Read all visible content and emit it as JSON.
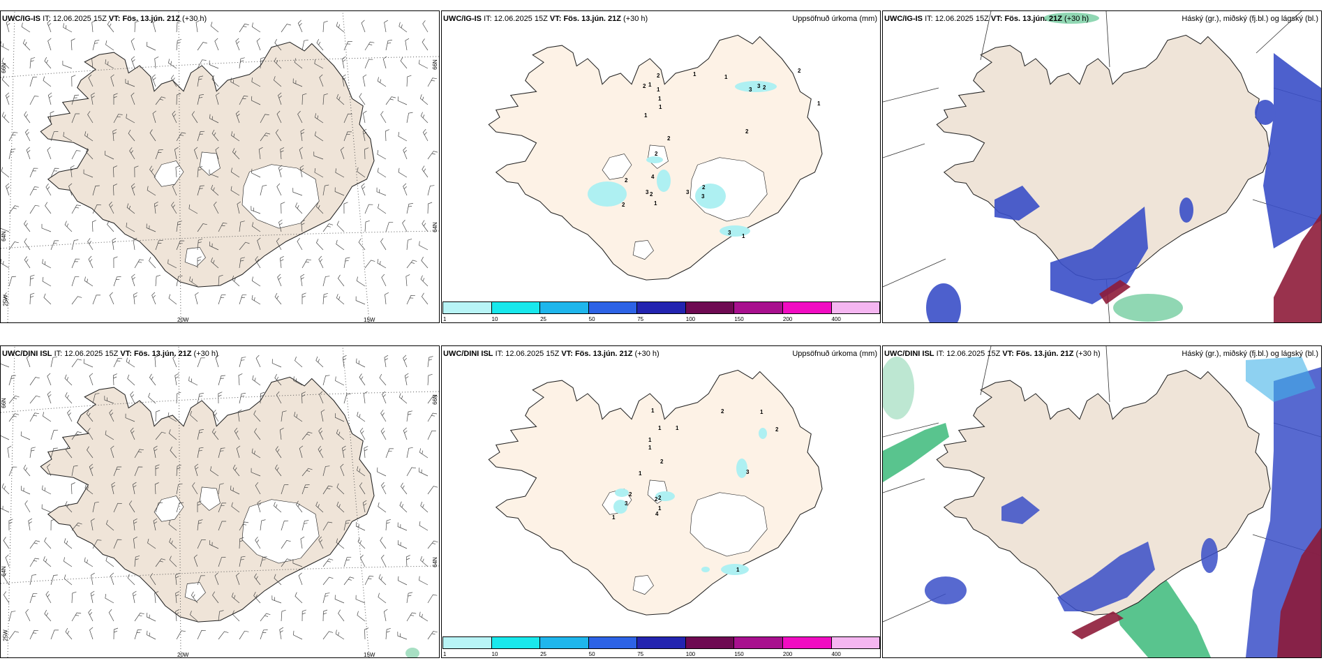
{
  "rows": [
    {
      "model": "UWC/IG-IS",
      "init_label": "IT:",
      "init_time": "12.06.2025 15Z",
      "valid_label": "VT:",
      "valid_time": "Fös. 13.jún. 21Z",
      "lead": "(+30 h)"
    },
    {
      "model": "UWC/DINI ISL",
      "init_label": "IT:",
      "init_time": "12.06.2025 15Z",
      "valid_label": "VT:",
      "valid_time": "Fös. 13.jún. 21Z",
      "lead": "(+30 h)"
    }
  ],
  "panels": {
    "precip_title": "Uppsöfnuð úrkoma (mm)",
    "cloud_title": "Háský (gr.), miðský (fj.bl.) og lágský (bl.)"
  },
  "grid_labels": {
    "lat_66": "66N",
    "lat_64": "64N",
    "lon_25": "25W",
    "lon_20": "20W",
    "lon_15": "15W"
  },
  "colorbar": {
    "colors": [
      "#b8f4f6",
      "#19e8ec",
      "#1fb6ec",
      "#2d63e6",
      "#2324b0",
      "#6e0a52",
      "#a8108e",
      "#f10cc2",
      "#f5b6f1"
    ],
    "labels": [
      "1",
      "10",
      "25",
      "50",
      "75",
      "100",
      "150",
      "200",
      "400"
    ]
  },
  "precip_labels_top": [
    "2",
    "1",
    "1",
    "1",
    "2",
    "1",
    "1",
    "1",
    "2",
    "2",
    "2",
    "3",
    "3",
    "1",
    "2",
    "2",
    "2",
    "4",
    "3",
    "3",
    "2",
    "3",
    "1",
    "2",
    "1",
    "2",
    "1",
    "3"
  ],
  "precip_labels_bottom": [
    "1",
    "2",
    "1",
    "1",
    "2",
    "1",
    "1",
    "3",
    "2",
    "1",
    "2",
    "3",
    "1",
    "4",
    "2",
    "1",
    "2",
    "1",
    "1"
  ],
  "colors": {
    "land": "#efe4d8",
    "land_precip": "#fdf2e6",
    "high_cloud": "#22b068",
    "mid_cloud": "#3a4fc8",
    "low_cloud": "#8e1c3a",
    "light_rain": "#aef0f2"
  }
}
